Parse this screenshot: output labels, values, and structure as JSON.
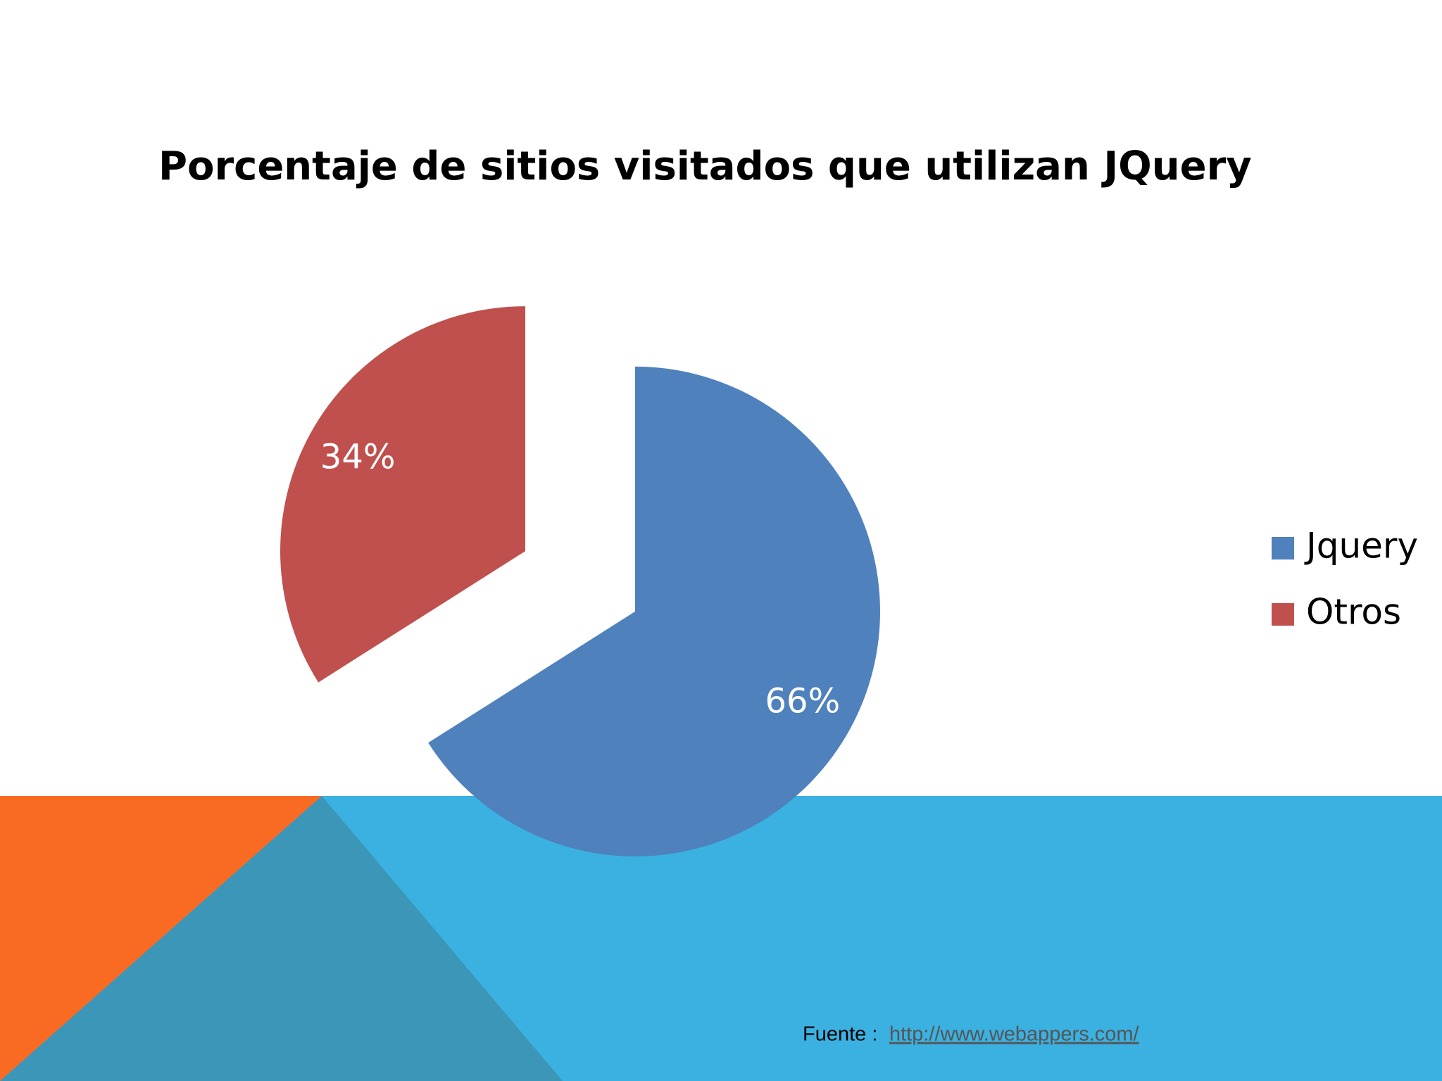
{
  "chart_data": {
    "type": "pie",
    "title": "Porcentaje de sitios visitados que utilizan JQuery",
    "categories": [
      "Jquery",
      "Otros"
    ],
    "values": [
      66,
      34
    ],
    "value_labels": [
      "66%",
      "34%"
    ],
    "colors": [
      "#4F81BD",
      "#C0504D"
    ],
    "exploded": true,
    "legend": "right"
  },
  "source": {
    "label": "Fuente :",
    "link": "http://www.webappers.com/"
  }
}
